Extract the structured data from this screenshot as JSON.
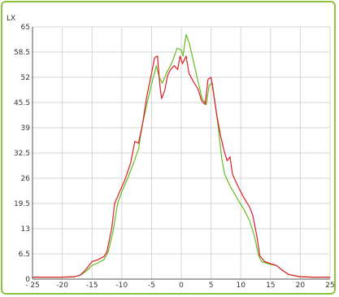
{
  "chart_data": {
    "type": "line",
    "title": "",
    "xlabel": "",
    "ylabel": "LX",
    "xlim": [
      -25,
      25
    ],
    "ylim": [
      0,
      65
    ],
    "x_ticks": [
      -25,
      -20,
      -15,
      -10,
      -5,
      0,
      5,
      10,
      15,
      20,
      25
    ],
    "x_tick_labels": [
      "- 25",
      "-20",
      "-15",
      "-10",
      "-5",
      "0",
      "5",
      "10",
      "15",
      "20",
      "25"
    ],
    "y_ticks": [
      0,
      6.5,
      13,
      19.5,
      26,
      32.5,
      39,
      45.5,
      52,
      58.5,
      65
    ],
    "y_tick_labels": [
      "0",
      "6.5",
      "13",
      "19.5",
      "26",
      "32.5",
      "39",
      "45.5",
      "52",
      "58.5",
      "65"
    ],
    "grid": true,
    "series": [
      {
        "color": "#66bb22",
        "points": [
          [
            -25,
            0.5
          ],
          [
            -20,
            0.5
          ],
          [
            -18,
            0.6
          ],
          [
            -17,
            1.0
          ],
          [
            -16,
            2.0
          ],
          [
            -15,
            3.5
          ],
          [
            -14,
            4.2
          ],
          [
            -13,
            5.0
          ],
          [
            -12.3,
            7.0
          ],
          [
            -11.5,
            12.0
          ],
          [
            -10.7,
            19.5
          ],
          [
            -10,
            22.5
          ],
          [
            -9,
            26.0
          ],
          [
            -8,
            30.0
          ],
          [
            -7.2,
            33.5
          ],
          [
            -6.5,
            40.0
          ],
          [
            -5.5,
            47.0
          ],
          [
            -4.7,
            52.0
          ],
          [
            -4.2,
            55.0
          ],
          [
            -3.7,
            52.0
          ],
          [
            -3.2,
            50.5
          ],
          [
            -2.5,
            53.0
          ],
          [
            -1.5,
            56.0
          ],
          [
            -0.7,
            59.5
          ],
          [
            0,
            59.0
          ],
          [
            0.3,
            57.5
          ],
          [
            0.8,
            63.0
          ],
          [
            1.3,
            61.0
          ],
          [
            2.0,
            56.5
          ],
          [
            2.8,
            51.0
          ],
          [
            3.5,
            46.5
          ],
          [
            4.2,
            45.0
          ],
          [
            4.7,
            50.0
          ],
          [
            5.2,
            50.5
          ],
          [
            5.8,
            44.0
          ],
          [
            6.3,
            38.0
          ],
          [
            6.8,
            31.0
          ],
          [
            7.3,
            27.0
          ],
          [
            8.2,
            24.0
          ],
          [
            9.5,
            20.5
          ],
          [
            10.5,
            18.0
          ],
          [
            11.5,
            15.0
          ],
          [
            12.3,
            11.0
          ],
          [
            13.0,
            6.0
          ],
          [
            13.5,
            4.5
          ],
          [
            15.0,
            3.8
          ],
          [
            16.0,
            3.5
          ],
          [
            16.8,
            2.5
          ],
          [
            18.0,
            1.2
          ],
          [
            20.0,
            0.6
          ],
          [
            22.0,
            0.5
          ],
          [
            25,
            0.5
          ]
        ]
      },
      {
        "color": "#dd1f26",
        "points": [
          [
            -25,
            0.5
          ],
          [
            -20,
            0.5
          ],
          [
            -18,
            0.6
          ],
          [
            -17,
            1.0
          ],
          [
            -16,
            2.5
          ],
          [
            -15,
            4.5
          ],
          [
            -14,
            5.0
          ],
          [
            -13,
            5.8
          ],
          [
            -12.5,
            7.0
          ],
          [
            -11.7,
            13.0
          ],
          [
            -11.2,
            19.5
          ],
          [
            -10.5,
            22.0
          ],
          [
            -9.5,
            25.5
          ],
          [
            -8.5,
            30.0
          ],
          [
            -7.8,
            35.5
          ],
          [
            -7.2,
            35.0
          ],
          [
            -6.5,
            40.0
          ],
          [
            -5.8,
            47.0
          ],
          [
            -5.0,
            53.0
          ],
          [
            -4.5,
            57.0
          ],
          [
            -4.0,
            57.5
          ],
          [
            -3.6,
            50.0
          ],
          [
            -3.3,
            46.5
          ],
          [
            -2.8,
            48.5
          ],
          [
            -2.3,
            52.5
          ],
          [
            -1.8,
            54.0
          ],
          [
            -1.2,
            55.0
          ],
          [
            -0.6,
            54.0
          ],
          [
            -0.2,
            57.5
          ],
          [
            0.2,
            55.5
          ],
          [
            0.8,
            57.5
          ],
          [
            1.3,
            53.0
          ],
          [
            2.0,
            51.0
          ],
          [
            2.8,
            49.0
          ],
          [
            3.4,
            46.0
          ],
          [
            4.0,
            45.0
          ],
          [
            4.5,
            51.5
          ],
          [
            5.0,
            52.0
          ],
          [
            5.5,
            47.0
          ],
          [
            6.0,
            42.0
          ],
          [
            6.6,
            37.0
          ],
          [
            7.2,
            33.0
          ],
          [
            7.7,
            30.5
          ],
          [
            8.2,
            31.5
          ],
          [
            8.6,
            27.0
          ],
          [
            9.5,
            24.0
          ],
          [
            10.5,
            21.0
          ],
          [
            11.5,
            18.5
          ],
          [
            12.0,
            16.5
          ],
          [
            12.7,
            11.0
          ],
          [
            13.2,
            6.0
          ],
          [
            14.0,
            4.5
          ],
          [
            15.0,
            4.0
          ],
          [
            16.0,
            3.5
          ],
          [
            16.8,
            2.5
          ],
          [
            18.0,
            1.2
          ],
          [
            20.0,
            0.6
          ],
          [
            22.0,
            0.5
          ],
          [
            25,
            0.5
          ]
        ]
      }
    ]
  }
}
